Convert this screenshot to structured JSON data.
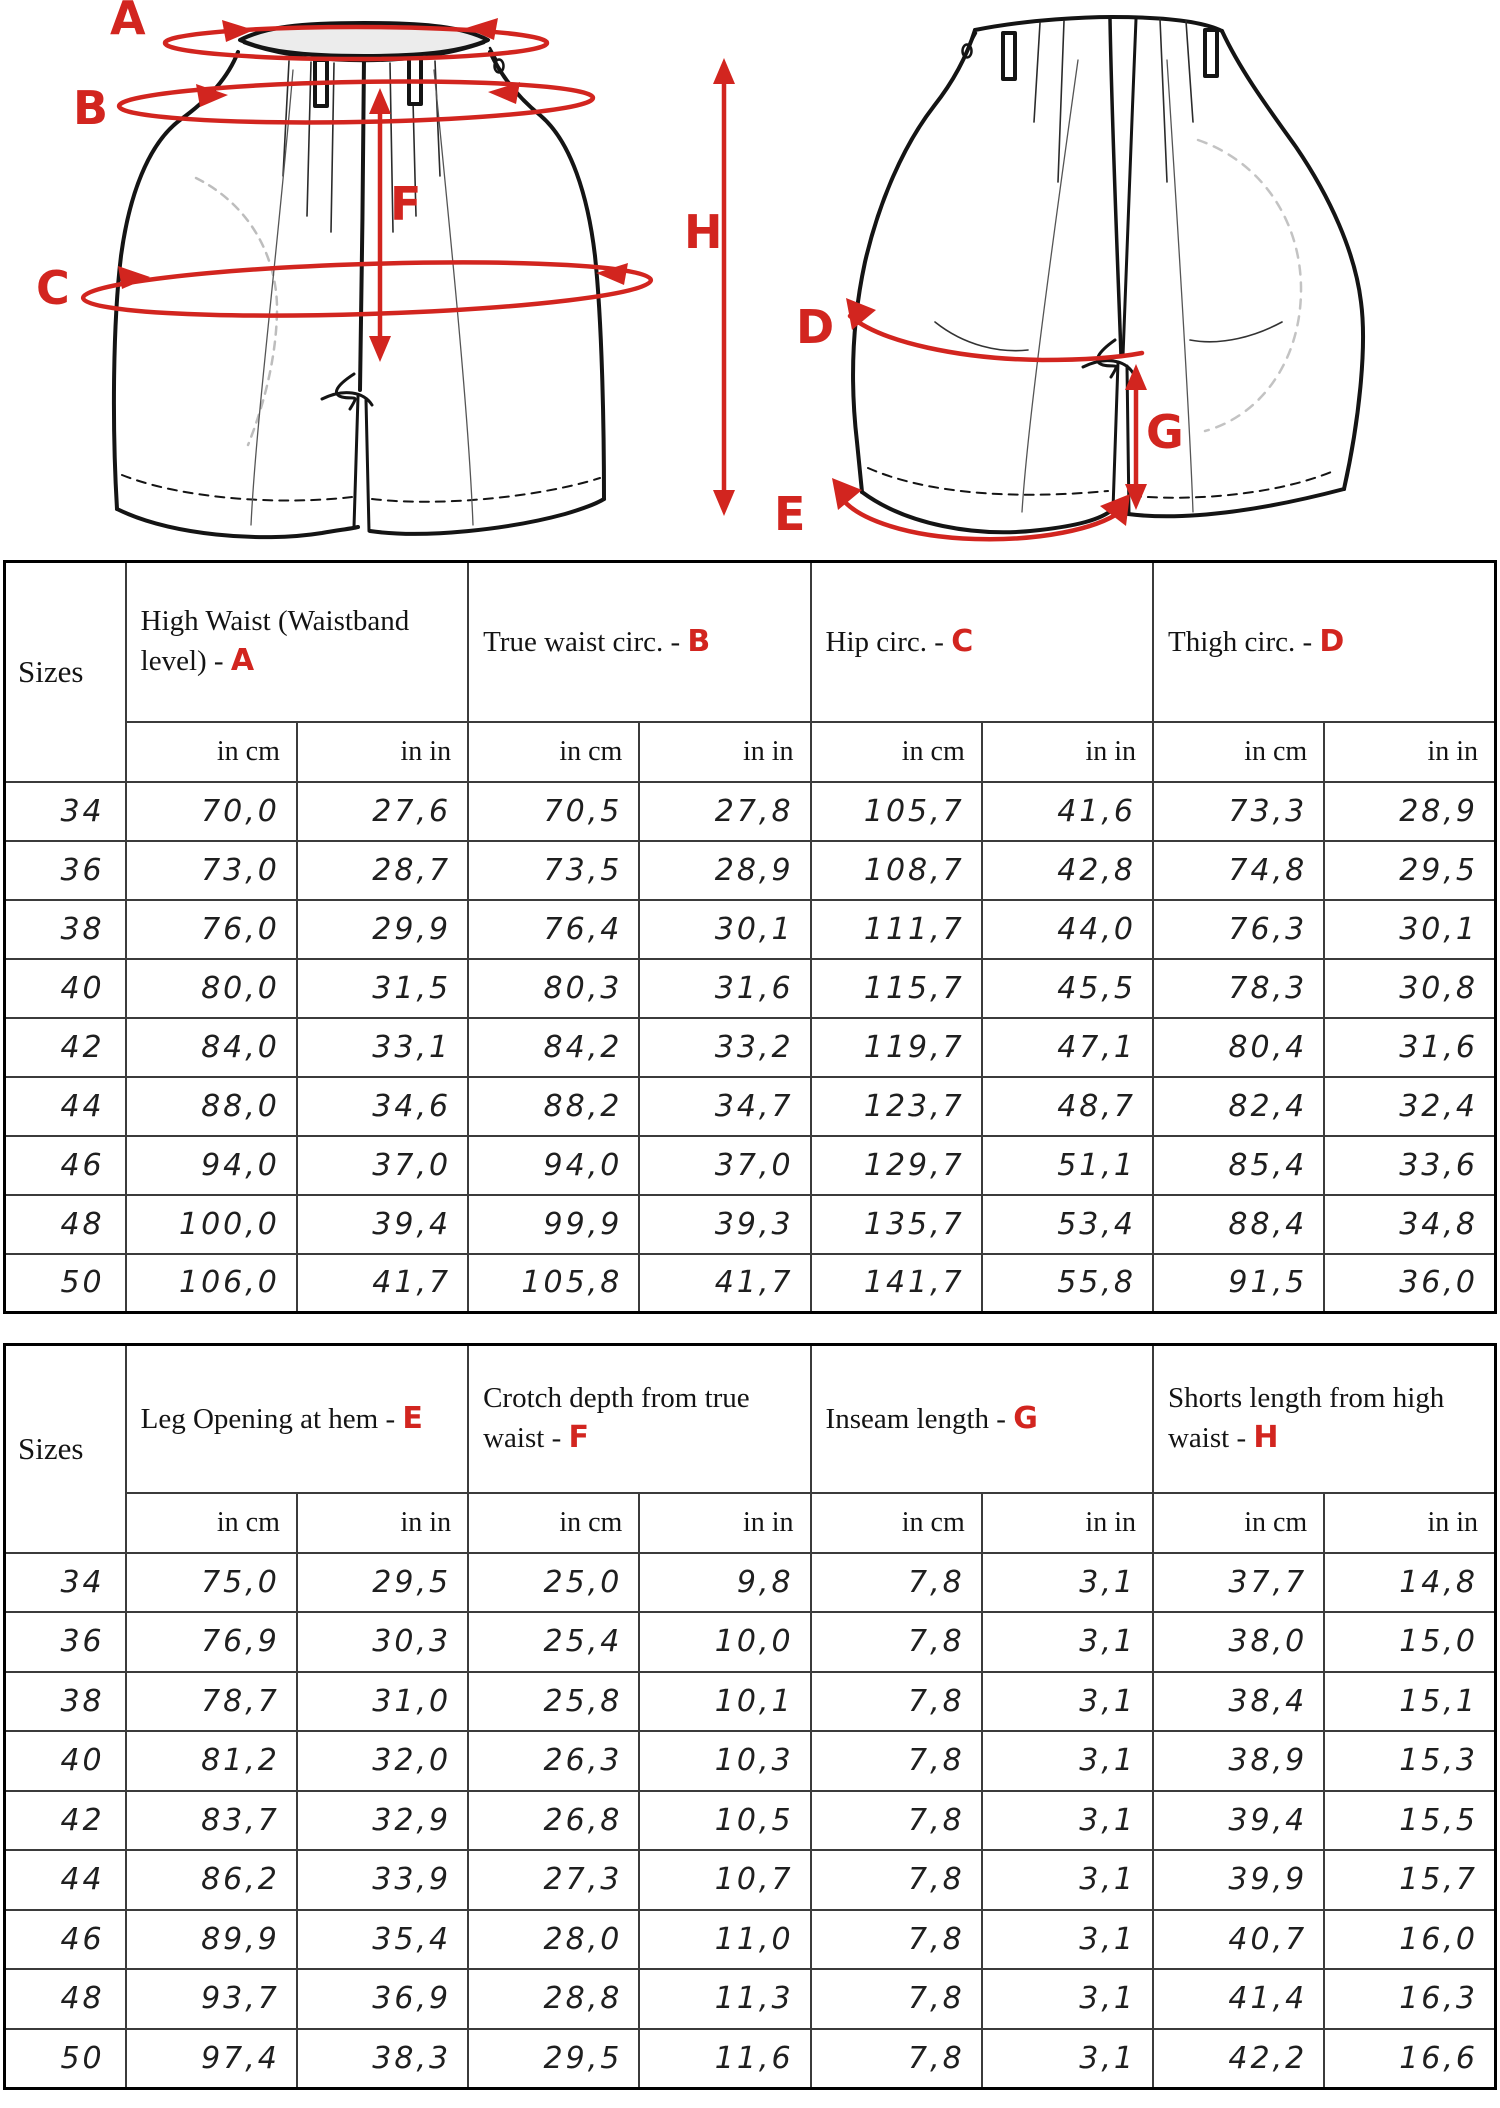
{
  "sep": "- ",
  "diagram": {
    "accent_color": "#d2251f",
    "letters": {
      "A": "A",
      "B": "B",
      "C": "C",
      "D": "D",
      "E": "E",
      "F": "F",
      "G": "G",
      "H": "H"
    }
  },
  "tables": [
    {
      "sizes_header": "Sizes",
      "unit_cm": "in cm",
      "unit_in": "in in",
      "columns": [
        {
          "label": "High Waist (Waistband level) ",
          "letter": "A"
        },
        {
          "label": "True waist circ. ",
          "letter": "B"
        },
        {
          "label": "Hip circ. ",
          "letter": "C"
        },
        {
          "label": "Thigh circ. ",
          "letter": "D"
        }
      ],
      "rows": [
        {
          "size": "34",
          "values": [
            "70,0",
            "27,6",
            "70,5",
            "27,8",
            "105,7",
            "41,6",
            "73,3",
            "28,9"
          ]
        },
        {
          "size": "36",
          "values": [
            "73,0",
            "28,7",
            "73,5",
            "28,9",
            "108,7",
            "42,8",
            "74,8",
            "29,5"
          ]
        },
        {
          "size": "38",
          "values": [
            "76,0",
            "29,9",
            "76,4",
            "30,1",
            "111,7",
            "44,0",
            "76,3",
            "30,1"
          ]
        },
        {
          "size": "40",
          "values": [
            "80,0",
            "31,5",
            "80,3",
            "31,6",
            "115,7",
            "45,5",
            "78,3",
            "30,8"
          ]
        },
        {
          "size": "42",
          "values": [
            "84,0",
            "33,1",
            "84,2",
            "33,2",
            "119,7",
            "47,1",
            "80,4",
            "31,6"
          ]
        },
        {
          "size": "44",
          "values": [
            "88,0",
            "34,6",
            "88,2",
            "34,7",
            "123,7",
            "48,7",
            "82,4",
            "32,4"
          ]
        },
        {
          "size": "46",
          "values": [
            "94,0",
            "37,0",
            "94,0",
            "37,0",
            "129,7",
            "51,1",
            "85,4",
            "33,6"
          ]
        },
        {
          "size": "48",
          "values": [
            "100,0",
            "39,4",
            "99,9",
            "39,3",
            "135,7",
            "53,4",
            "88,4",
            "34,8"
          ]
        },
        {
          "size": "50",
          "values": [
            "106,0",
            "41,7",
            "105,8",
            "41,7",
            "141,7",
            "55,8",
            "91,5",
            "36,0"
          ]
        }
      ]
    },
    {
      "sizes_header": "Sizes",
      "unit_cm": "in cm",
      "unit_in": "in in",
      "columns": [
        {
          "label": "Leg Opening at hem ",
          "letter": "E"
        },
        {
          "label": "Crotch depth from true waist ",
          "letter": "F"
        },
        {
          "label": "Inseam length ",
          "letter": "G"
        },
        {
          "label": "Shorts length from high waist ",
          "letter": "H"
        }
      ],
      "rows": [
        {
          "size": "34",
          "values": [
            "75,0",
            "29,5",
            "25,0",
            "9,8",
            "7,8",
            "3,1",
            "37,7",
            "14,8"
          ]
        },
        {
          "size": "36",
          "values": [
            "76,9",
            "30,3",
            "25,4",
            "10,0",
            "7,8",
            "3,1",
            "38,0",
            "15,0"
          ]
        },
        {
          "size": "38",
          "values": [
            "78,7",
            "31,0",
            "25,8",
            "10,1",
            "7,8",
            "3,1",
            "38,4",
            "15,1"
          ]
        },
        {
          "size": "40",
          "values": [
            "81,2",
            "32,0",
            "26,3",
            "10,3",
            "7,8",
            "3,1",
            "38,9",
            "15,3"
          ]
        },
        {
          "size": "42",
          "values": [
            "83,7",
            "32,9",
            "26,8",
            "10,5",
            "7,8",
            "3,1",
            "39,4",
            "15,5"
          ]
        },
        {
          "size": "44",
          "values": [
            "86,2",
            "33,9",
            "27,3",
            "10,7",
            "7,8",
            "3,1",
            "39,9",
            "15,7"
          ]
        },
        {
          "size": "46",
          "values": [
            "89,9",
            "35,4",
            "28,0",
            "11,0",
            "7,8",
            "3,1",
            "40,7",
            "16,0"
          ]
        },
        {
          "size": "48",
          "values": [
            "93,7",
            "36,9",
            "28,8",
            "11,3",
            "7,8",
            "3,1",
            "41,4",
            "16,3"
          ]
        },
        {
          "size": "50",
          "values": [
            "97,4",
            "38,3",
            "29,5",
            "11,6",
            "7,8",
            "3,1",
            "42,2",
            "16,6"
          ]
        }
      ]
    }
  ]
}
